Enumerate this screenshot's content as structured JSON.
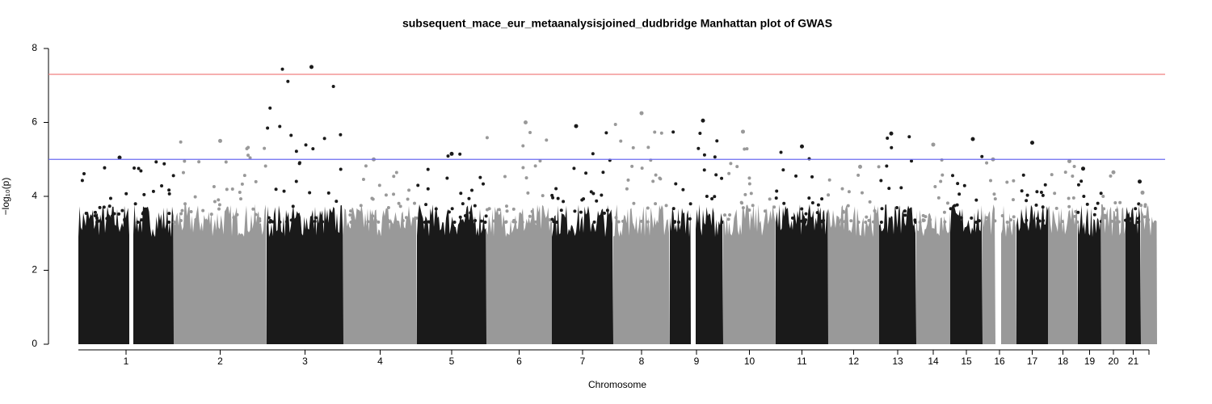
{
  "chart_data": {
    "type": "manhattan",
    "title": "subsequent_mace_eur_metaanalysisjoined_dudbridge Manhattan plot of GWAS",
    "x_label": "Chromosome",
    "y_label": "−log₁₀(p)",
    "categories": [
      "1",
      "2",
      "3",
      "4",
      "5",
      "6",
      "7",
      "8",
      "9",
      "10",
      "11",
      "12",
      "13",
      "14",
      "15",
      "16",
      "17",
      "18",
      "19",
      "20",
      "21",
      null
    ],
    "values": [
      5.05,
      5.5,
      7.5,
      5.0,
      5.15,
      6.0,
      5.9,
      6.25,
      6.05,
      5.75,
      5.35,
      4.8,
      5.7,
      5.4,
      5.55,
      5.0,
      5.45,
      4.95,
      4.75,
      4.65,
      4.4,
      4.1
    ],
    "colors": [
      "#1a1a1a",
      "#999999"
    ],
    "thresholds": [
      {
        "value": 7.3,
        "color": "#f08080"
      },
      {
        "value": 5,
        "color": "#6b6bf0"
      }
    ],
    "ylim": [
      0,
      8
    ],
    "yticks": [
      0,
      2,
      4,
      6,
      8
    ]
  }
}
